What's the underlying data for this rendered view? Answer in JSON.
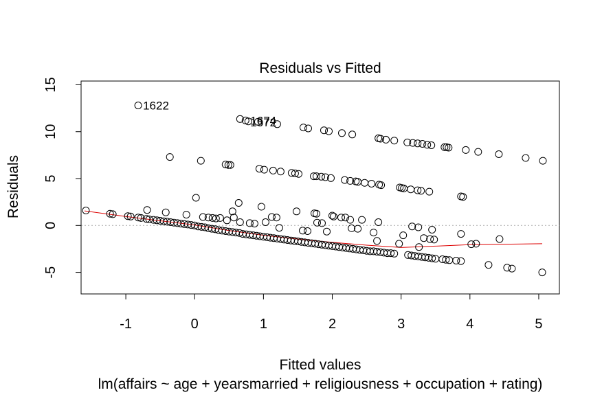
{
  "chart_data": {
    "type": "scatter",
    "title": "Residuals vs Fitted",
    "xlabel": "Fitted values",
    "ylabel": "Residuals",
    "subtitle": "lm(affairs ~ age + yearsmarried + religiousness + occupation + rating)",
    "xlim": [
      -1.65,
      5.3
    ],
    "ylim": [
      -7.3,
      15.4
    ],
    "x_ticks": [
      -1,
      0,
      1,
      2,
      3,
      4,
      5
    ],
    "y_ticks": [
      -5,
      0,
      5,
      10,
      15
    ],
    "grid": false,
    "legend": "none",
    "reference_line": 0,
    "colors": {
      "points": "#000000",
      "smooth": "#dd0000",
      "reference": "#aaaaaa"
    },
    "annotations": [
      {
        "text": "1622",
        "x": -0.82,
        "y": 12.8
      },
      {
        "text": "1674",
        "x": 0.74,
        "y": 11.2
      },
      {
        "text": "1572",
        "x": 0.74,
        "y": 11.0
      }
    ],
    "series": [
      {
        "points": [
          [
            -0.82,
            12.8
          ],
          [
            0.66,
            11.35
          ],
          [
            0.74,
            11.2
          ],
          [
            0.78,
            11.1
          ],
          [
            0.92,
            11.05
          ],
          [
            1.2,
            10.8
          ],
          [
            1.58,
            10.45
          ],
          [
            1.65,
            10.35
          ],
          [
            1.88,
            10.15
          ],
          [
            1.95,
            10.05
          ],
          [
            2.14,
            9.85
          ],
          [
            2.29,
            9.7
          ],
          [
            2.67,
            9.3
          ],
          [
            2.7,
            9.25
          ],
          [
            2.78,
            9.15
          ],
          [
            2.9,
            9.05
          ],
          [
            3.09,
            8.85
          ],
          [
            3.17,
            8.8
          ],
          [
            3.24,
            8.75
          ],
          [
            3.31,
            8.7
          ],
          [
            3.38,
            8.6
          ],
          [
            3.44,
            8.55
          ],
          [
            3.63,
            8.35
          ],
          [
            3.66,
            8.35
          ],
          [
            3.69,
            8.3
          ],
          [
            3.94,
            8.05
          ],
          [
            4.12,
            7.85
          ],
          [
            4.42,
            7.6
          ],
          [
            4.81,
            7.2
          ],
          [
            5.06,
            6.9
          ],
          [
            -0.36,
            7.3
          ],
          [
            0.09,
            6.9
          ],
          [
            0.45,
            6.5
          ],
          [
            0.49,
            6.45
          ],
          [
            0.52,
            6.45
          ],
          [
            0.94,
            6.05
          ],
          [
            1.01,
            5.95
          ],
          [
            1.14,
            5.85
          ],
          [
            1.25,
            5.75
          ],
          [
            1.41,
            5.6
          ],
          [
            1.46,
            5.55
          ],
          [
            1.51,
            5.5
          ],
          [
            1.73,
            5.25
          ],
          [
            1.77,
            5.25
          ],
          [
            1.84,
            5.2
          ],
          [
            1.9,
            5.15
          ],
          [
            1.98,
            5.05
          ],
          [
            2.18,
            4.85
          ],
          [
            2.26,
            4.75
          ],
          [
            2.34,
            4.7
          ],
          [
            2.37,
            4.65
          ],
          [
            2.47,
            4.55
          ],
          [
            2.57,
            4.45
          ],
          [
            2.68,
            4.35
          ],
          [
            2.71,
            4.3
          ],
          [
            2.98,
            4.05
          ],
          [
            3.01,
            4.0
          ],
          [
            3.04,
            3.95
          ],
          [
            3.14,
            3.85
          ],
          [
            3.24,
            3.75
          ],
          [
            3.29,
            3.7
          ],
          [
            3.41,
            3.6
          ],
          [
            3.87,
            3.1
          ],
          [
            3.9,
            3.05
          ],
          [
            -1.58,
            1.6
          ],
          [
            -1.23,
            1.25
          ],
          [
            -1.19,
            1.2
          ],
          [
            -0.97,
            1.0
          ],
          [
            -0.93,
            0.95
          ],
          [
            -0.82,
            0.85
          ],
          [
            -0.78,
            0.8
          ],
          [
            -0.7,
            0.7
          ],
          [
            -0.66,
            0.65
          ],
          [
            -0.6,
            0.6
          ],
          [
            -0.55,
            0.55
          ],
          [
            -0.5,
            0.5
          ],
          [
            -0.45,
            0.45
          ],
          [
            -0.4,
            0.4
          ],
          [
            -0.35,
            0.35
          ],
          [
            -0.3,
            0.3
          ],
          [
            -0.25,
            0.25
          ],
          [
            -0.2,
            0.2
          ],
          [
            -0.15,
            0.15
          ],
          [
            -0.1,
            0.1
          ],
          [
            -0.05,
            0.05
          ],
          [
            0.0,
            0.0
          ],
          [
            0.05,
            -0.1
          ],
          [
            0.1,
            -0.15
          ],
          [
            0.15,
            -0.2
          ],
          [
            0.2,
            -0.3
          ],
          [
            0.25,
            -0.35
          ],
          [
            0.3,
            -0.4
          ],
          [
            0.35,
            -0.5
          ],
          [
            0.4,
            -0.55
          ],
          [
            0.45,
            -0.6
          ],
          [
            0.5,
            -0.65
          ],
          [
            0.55,
            -0.7
          ],
          [
            0.6,
            -0.75
          ],
          [
            0.65,
            -0.8
          ],
          [
            0.7,
            -0.9
          ],
          [
            0.75,
            -0.95
          ],
          [
            0.8,
            -1.0
          ],
          [
            0.85,
            -1.05
          ],
          [
            0.9,
            -1.1
          ],
          [
            0.95,
            -1.15
          ],
          [
            1.0,
            -1.2
          ],
          [
            1.05,
            -1.25
          ],
          [
            1.1,
            -1.3
          ],
          [
            1.15,
            -1.35
          ],
          [
            1.2,
            -1.4
          ],
          [
            1.25,
            -1.45
          ],
          [
            1.3,
            -1.5
          ],
          [
            1.35,
            -1.55
          ],
          [
            1.4,
            -1.6
          ],
          [
            1.45,
            -1.65
          ],
          [
            1.5,
            -1.7
          ],
          [
            1.55,
            -1.75
          ],
          [
            1.6,
            -1.8
          ],
          [
            1.65,
            -1.85
          ],
          [
            1.7,
            -1.9
          ],
          [
            1.75,
            -1.95
          ],
          [
            1.8,
            -2.0
          ],
          [
            1.85,
            -2.05
          ],
          [
            1.9,
            -2.1
          ],
          [
            1.95,
            -2.15
          ],
          [
            2.0,
            -2.2
          ],
          [
            2.05,
            -2.25
          ],
          [
            2.1,
            -2.3
          ],
          [
            2.15,
            -2.35
          ],
          [
            2.2,
            -2.4
          ],
          [
            2.25,
            -2.45
          ],
          [
            2.3,
            -2.5
          ],
          [
            2.35,
            -2.55
          ],
          [
            2.4,
            -2.6
          ],
          [
            2.45,
            -2.65
          ],
          [
            2.5,
            -2.7
          ],
          [
            2.55,
            -2.75
          ],
          [
            2.6,
            -2.75
          ],
          [
            2.65,
            -2.8
          ],
          [
            2.7,
            -2.85
          ],
          [
            2.75,
            -2.9
          ],
          [
            2.8,
            -2.95
          ],
          [
            2.85,
            -2.95
          ],
          [
            2.9,
            -3.0
          ],
          [
            3.1,
            -3.15
          ],
          [
            3.15,
            -3.2
          ],
          [
            3.2,
            -3.25
          ],
          [
            3.25,
            -3.3
          ],
          [
            3.3,
            -3.35
          ],
          [
            3.35,
            -3.4
          ],
          [
            3.4,
            -3.45
          ],
          [
            3.45,
            -3.5
          ],
          [
            3.5,
            -3.55
          ],
          [
            3.6,
            -3.6
          ],
          [
            3.65,
            -3.65
          ],
          [
            3.7,
            -3.7
          ],
          [
            3.8,
            -3.75
          ],
          [
            3.87,
            -3.8
          ],
          [
            4.27,
            -4.2
          ],
          [
            4.54,
            -4.5
          ],
          [
            4.61,
            -4.6
          ],
          [
            5.05,
            -5.0
          ],
          [
            -0.69,
            1.65
          ],
          [
            -0.42,
            1.4
          ],
          [
            -0.12,
            1.15
          ],
          [
            0.02,
            2.95
          ],
          [
            0.12,
            0.9
          ],
          [
            0.2,
            0.85
          ],
          [
            0.26,
            0.8
          ],
          [
            0.31,
            0.75
          ],
          [
            0.55,
            1.5
          ],
          [
            0.57,
            0.85
          ],
          [
            0.37,
            0.8
          ],
          [
            0.47,
            0.55
          ],
          [
            0.64,
            2.4
          ],
          [
            0.97,
            2.0
          ],
          [
            0.66,
            0.35
          ],
          [
            0.8,
            0.25
          ],
          [
            0.87,
            0.2
          ],
          [
            1.03,
            0.35
          ],
          [
            1.12,
            0.9
          ],
          [
            1.19,
            0.85
          ],
          [
            1.23,
            -0.25
          ],
          [
            1.48,
            1.5
          ],
          [
            1.57,
            -0.55
          ],
          [
            1.64,
            -0.6
          ],
          [
            1.74,
            1.3
          ],
          [
            1.77,
            1.25
          ],
          [
            1.78,
            0.3
          ],
          [
            1.85,
            0.25
          ],
          [
            1.92,
            -0.65
          ],
          [
            2.0,
            1.05
          ],
          [
            2.02,
            0.95
          ],
          [
            2.13,
            0.85
          ],
          [
            2.19,
            0.85
          ],
          [
            2.26,
            0.6
          ],
          [
            2.28,
            -0.3
          ],
          [
            2.37,
            -0.35
          ],
          [
            2.43,
            0.6
          ],
          [
            2.6,
            -0.75
          ],
          [
            2.67,
            0.35
          ],
          [
            2.65,
            -1.65
          ],
          [
            2.97,
            -1.95
          ],
          [
            3.03,
            -1.05
          ],
          [
            3.16,
            -0.1
          ],
          [
            3.25,
            -0.2
          ],
          [
            3.33,
            -1.35
          ],
          [
            3.45,
            -0.45
          ],
          [
            3.48,
            -1.5
          ],
          [
            3.42,
            -1.45
          ],
          [
            3.87,
            -0.9
          ],
          [
            4.02,
            -2.0
          ],
          [
            4.09,
            -1.95
          ],
          [
            4.43,
            -1.45
          ],
          [
            3.26,
            -2.3
          ]
        ]
      }
    ],
    "smooth_line": [
      [
        -1.6,
        1.55
      ],
      [
        -1.0,
        0.95
      ],
      [
        -0.5,
        0.5
      ],
      [
        0.0,
        0.05
      ],
      [
        0.5,
        -0.55
      ],
      [
        1.0,
        -1.05
      ],
      [
        1.5,
        -1.45
      ],
      [
        2.0,
        -1.8
      ],
      [
        2.5,
        -2.1
      ],
      [
        3.0,
        -2.35
      ],
      [
        3.5,
        -2.2
      ],
      [
        4.0,
        -2.05
      ],
      [
        4.5,
        -2.0
      ],
      [
        5.05,
        -1.95
      ]
    ]
  }
}
